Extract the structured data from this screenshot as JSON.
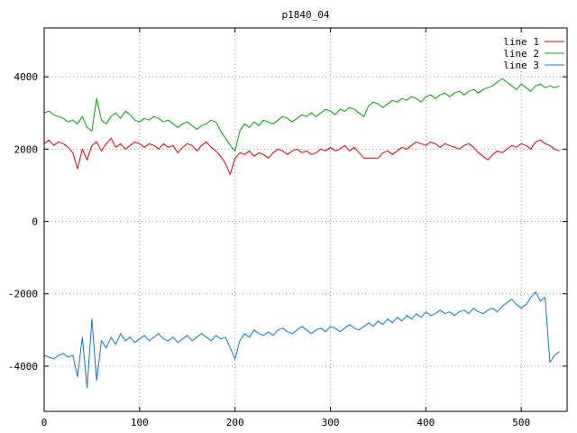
{
  "chart_data": {
    "type": "line",
    "title": "p1840_04",
    "xlabel": "",
    "ylabel": "",
    "grid": true,
    "legend_position": "top-right",
    "xlim": [
      0,
      548
    ],
    "ylim": [
      -5250,
      5350
    ],
    "xticks": [
      0,
      100,
      200,
      300,
      400,
      500
    ],
    "yticks": [
      -4000,
      -2000,
      0,
      2000,
      4000
    ],
    "x_start": 0,
    "x_step": 5,
    "series": [
      {
        "name": "line 1",
        "color": "#dd0000",
        "values": [
          2150,
          2250,
          2100,
          2200,
          2150,
          2050,
          1900,
          1450,
          2000,
          1700,
          2100,
          2200,
          1950,
          2150,
          2300,
          2050,
          2150,
          2000,
          2100,
          2200,
          2150,
          2050,
          2150,
          2100,
          2000,
          2150,
          2050,
          2100,
          1900,
          2050,
          2150,
          2100,
          1950,
          2100,
          2200,
          2050,
          1950,
          1800,
          1600,
          1300,
          1750,
          1900,
          1850,
          1950,
          1800,
          1900,
          1850,
          1750,
          1900,
          2000,
          1950,
          1850,
          1950,
          2000,
          1900,
          1950,
          1850,
          1900,
          2000,
          1950,
          2050,
          1950,
          2000,
          2100,
          1950,
          2050,
          1900,
          1750,
          1750,
          1750,
          1750,
          1900,
          1950,
          1850,
          1950,
          2050,
          2000,
          2100,
          2200,
          2150,
          2100,
          2200,
          2150,
          2050,
          2150,
          2100,
          2050,
          2000,
          2100,
          2150,
          2050,
          1900,
          1800,
          1700,
          1850,
          1950,
          1900,
          2000,
          2100,
          2050,
          2150,
          2100,
          2000,
          2200,
          2250,
          2150,
          2100,
          2000,
          1950
        ]
      },
      {
        "name": "line 2",
        "color": "#00a000",
        "values": [
          3000,
          3050,
          2950,
          2900,
          2850,
          2750,
          2800,
          2700,
          2900,
          2600,
          2500,
          3400,
          2800,
          2700,
          2900,
          3000,
          2850,
          3050,
          2950,
          2800,
          2750,
          2850,
          2800,
          2900,
          2850,
          2750,
          2800,
          2700,
          2600,
          2700,
          2750,
          2650,
          2550,
          2650,
          2700,
          2800,
          2750,
          2500,
          2300,
          2100,
          1950,
          2500,
          2700,
          2600,
          2750,
          2650,
          2800,
          2750,
          2700,
          2800,
          2900,
          2850,
          2750,
          2850,
          2950,
          2900,
          3000,
          2900,
          3000,
          3100,
          3050,
          2950,
          3100,
          3050,
          3150,
          3100,
          3000,
          2900,
          3200,
          3300,
          3250,
          3150,
          3250,
          3350,
          3300,
          3400,
          3350,
          3450,
          3400,
          3300,
          3450,
          3500,
          3400,
          3500,
          3550,
          3450,
          3550,
          3600,
          3500,
          3600,
          3650,
          3550,
          3650,
          3700,
          3750,
          3850,
          3950,
          3850,
          3750,
          3650,
          3800,
          3700,
          3600,
          3750,
          3800,
          3700,
          3750,
          3700,
          3750
        ]
      },
      {
        "name": "line 3",
        "color": "#0a7ad2",
        "values": [
          -3700,
          -3750,
          -3800,
          -3700,
          -3650,
          -3750,
          -3700,
          -4300,
          -3200,
          -4600,
          -2700,
          -4400,
          -3300,
          -3500,
          -3200,
          -3400,
          -3100,
          -3300,
          -3200,
          -3350,
          -3250,
          -3150,
          -3300,
          -3200,
          -3100,
          -3250,
          -3300,
          -3200,
          -3350,
          -3250,
          -3150,
          -3300,
          -3200,
          -3100,
          -3200,
          -3300,
          -3150,
          -3250,
          -3200,
          -3500,
          -3800,
          -3300,
          -3100,
          -3200,
          -3000,
          -3100,
          -3150,
          -3050,
          -3150,
          -3000,
          -2950,
          -3050,
          -3100,
          -3000,
          -2900,
          -3000,
          -3100,
          -3000,
          -2950,
          -3050,
          -2900,
          -2950,
          -3050,
          -2950,
          -2850,
          -2950,
          -3000,
          -2900,
          -2800,
          -2900,
          -2750,
          -2850,
          -2700,
          -2800,
          -2650,
          -2750,
          -2600,
          -2700,
          -2550,
          -2650,
          -2500,
          -2600,
          -2550,
          -2450,
          -2550,
          -2500,
          -2600,
          -2500,
          -2450,
          -2550,
          -2400,
          -2500,
          -2550,
          -2450,
          -2400,
          -2500,
          -2350,
          -2250,
          -2150,
          -2300,
          -2400,
          -2300,
          -2100,
          -1950,
          -2200,
          -2100,
          -3900,
          -3700,
          -3600
        ]
      }
    ],
    "grid_color": "#909090",
    "border_color": "#000000"
  }
}
